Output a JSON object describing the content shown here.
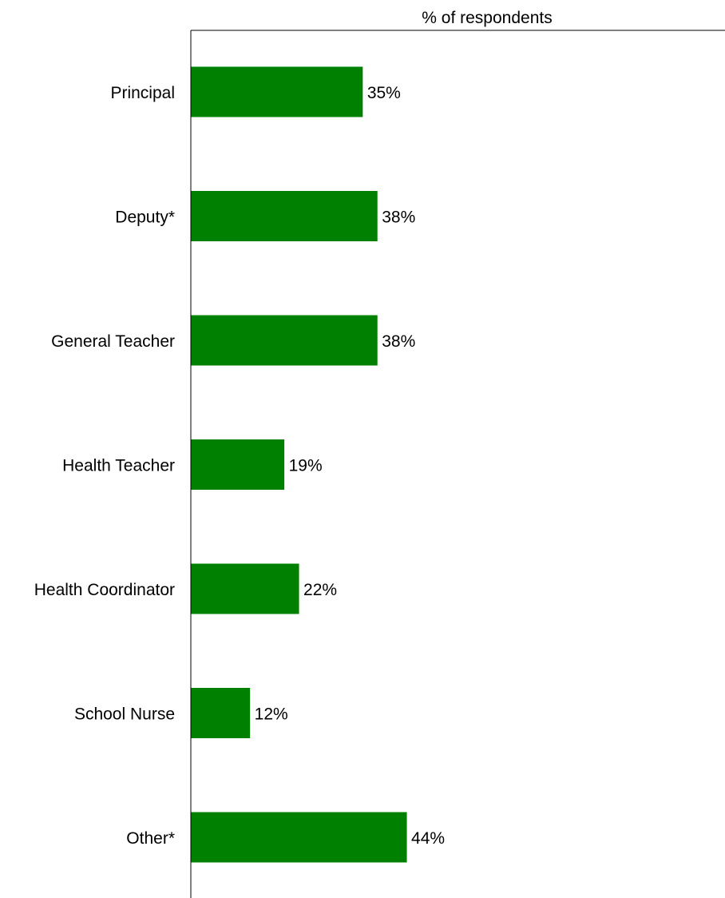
{
  "chart_data": {
    "type": "bar",
    "orientation": "horizontal",
    "title": "",
    "xlabel": "% of respondents",
    "xlabel_position": "top",
    "ylabel": "",
    "categories": [
      "Principal",
      "Deputy*",
      "General Teacher",
      "Health Teacher",
      "Health Coordinator",
      "School Nurse",
      "Other*"
    ],
    "values": [
      35,
      38,
      38,
      19,
      22,
      12,
      44
    ],
    "data_labels": [
      "35%",
      "38%",
      "38%",
      "19%",
      "22%",
      "12%",
      "44%"
    ],
    "xlim": [
      0,
      109
    ],
    "grid": false,
    "legend": "none",
    "bar_color": "#008000"
  }
}
